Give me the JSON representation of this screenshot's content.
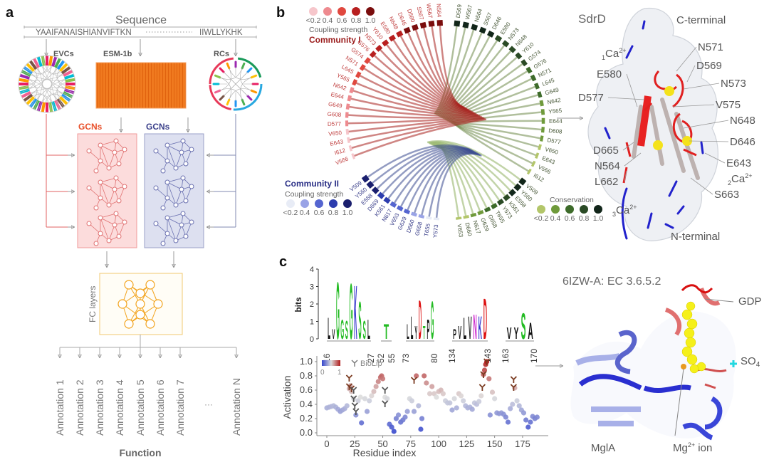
{
  "panel_a": {
    "letter": "a",
    "sequence_title": "Sequence",
    "sequence_left": "YAAIFANAISHIANVIFTKN",
    "sequence_right": "IIWLLYKHK",
    "evcs": "EVCs",
    "esm": "ESM-1b",
    "rcs": "RCs",
    "gcn_red": "GCNs",
    "gcn_blue": "GCNs",
    "fc_layers": "FC layers",
    "annotations": [
      "Annotation 1",
      "Annotation 2",
      "Annotation 3",
      "Annotation 4",
      "Annotation 5",
      "Annotation 6",
      "Annotation 7",
      "Annotation N"
    ],
    "ellipsis": "···",
    "function": "Function"
  },
  "panel_b": {
    "letter": "b",
    "legend_red": {
      "values": [
        "<0.2",
        "0.4",
        "0.6",
        "0.8",
        "1.0"
      ],
      "colors": [
        "#f6c6cb",
        "#ee8a8f",
        "#e0483f",
        "#b82020",
        "#7a0d0d"
      ],
      "title": "Coupling strength",
      "community": "Community I"
    },
    "legend_blue": {
      "values": [
        "<0.2",
        "0.4",
        "0.6",
        "0.8",
        "1.0"
      ],
      "colors": [
        "#e8ecf6",
        "#99a3e6",
        "#5565d0",
        "#2c3cae",
        "#1a1f6e"
      ],
      "title": "Coupling strength",
      "community": "Community II"
    },
    "legend_green": {
      "values": [
        "<0.2",
        "0.4",
        "0.6",
        "0.8",
        "1.0"
      ],
      "colors": [
        "#b3c66a",
        "#6f9a3b",
        "#3d6b2a",
        "#2a4a25",
        "#12261a"
      ],
      "title": "Conservation"
    },
    "red_residues": [
      "N564",
      "W567",
      "S567",
      "D580",
      "D646",
      "N648",
      "E580",
      "Y610",
      "N573",
      "G576",
      "G574",
      "N571",
      "L645",
      "Y565",
      "N642",
      "E644",
      "G649",
      "G608",
      "D577",
      "V650",
      "E643",
      "I612",
      "V566"
    ],
    "green_residues": [
      "D569",
      "W567",
      "N564",
      "S567",
      "D646",
      "E580",
      "N573",
      "N648",
      "Y610",
      "G574",
      "G576",
      "N571",
      "L645",
      "G649",
      "N642",
      "Y565",
      "E644",
      "D608",
      "D577",
      "V650",
      "E643",
      "V566",
      "I612",
      "V509",
      "Y560",
      "E558",
      "K561",
      "Y573",
      "T655",
      "G658",
      "G629",
      "N617",
      "D660",
      "V653"
    ],
    "blue_residues": [
      "V509",
      "Y560",
      "E558",
      "D669",
      "K561",
      "N617",
      "V653",
      "G629",
      "D660",
      "G658",
      "T655",
      "Y573"
    ],
    "protein_title": "SdrD",
    "protein_labels": [
      "C-terminal",
      "N571",
      "D569",
      "N573",
      "V575",
      "N648",
      "D646",
      "E643",
      "S663",
      "N-terminal",
      "E580",
      "D577",
      "D665",
      "N564",
      "L662"
    ],
    "ca_labels": [
      {
        "sub": "1",
        "text": "Ca",
        "sup": "2+"
      },
      {
        "sub": "2",
        "text": "Ca",
        "sup": "2+"
      },
      {
        "sub": "3",
        "text": "Ca",
        "sup": "2+"
      }
    ]
  },
  "panel_c": {
    "letter": "c",
    "protein_title": "6IZW-A: EC 3.6.5.2",
    "protein_labels": {
      "gdp": "GDP",
      "so4": "SO",
      "so4_sub": "4",
      "mgla": "MglA",
      "mg": "Mg",
      "mg_sup": "2+",
      "mg_ion": " ion"
    },
    "colorbar": {
      "min": "0",
      "max": "1",
      "biolip": "BioLip",
      "colors": [
        "#3344cc",
        "#dddddd",
        "#b01818"
      ]
    }
  },
  "chart_data": [
    {
      "type": "sequence-logo",
      "ylabel": "bits",
      "ylim": [
        0,
        4
      ],
      "yticks": [
        "0",
        "1",
        "2",
        "3",
        "4"
      ],
      "segments": [
        {
          "ticks": [
            "16",
            "27"
          ],
          "letters": [
            [
              "L",
              1.3,
              "#111"
            ],
            [
              "V",
              0.6,
              "#111"
            ],
            [
              "G",
              3.5,
              "#22bb22"
            ],
            [
              "G",
              1.2,
              "#22bb22"
            ],
            [
              "S",
              1.1,
              "#22bb22"
            ],
            [
              "G",
              3.4,
              "#22bb22"
            ],
            [
              "K",
              3.3,
              "#3333cc"
            ],
            [
              "S",
              2.3,
              "#22bb22"
            ],
            [
              "S",
              1.1,
              "#22bb22"
            ],
            [
              "L",
              1.2,
              "#111"
            ]
          ]
        },
        {
          "ticks": [
            "52",
            "55"
          ],
          "letters": [
            [
              "T",
              0.9,
              "#22bb22"
            ]
          ]
        },
        {
          "ticks": [
            "73",
            "80"
          ],
          "letters": [
            [
              "L",
              0.9,
              "#111"
            ],
            [
              "L",
              1.4,
              "#111"
            ],
            [
              "Y",
              0.8,
              "#111"
            ],
            [
              "D",
              2.4,
              "#dd1111"
            ],
            [
              "T",
              0.8,
              "#22bb22"
            ],
            [
              "P",
              1.2,
              "#111"
            ],
            [
              "G",
              2.3,
              "#22bb22"
            ]
          ]
        },
        {
          "ticks": [
            "134",
            "143"
          ],
          "letters": [
            [
              "P",
              0.6,
              "#111"
            ],
            [
              "V",
              0.8,
              "#111"
            ],
            [
              "L",
              1.3,
              "#111"
            ],
            [
              "V",
              1.4,
              "#111"
            ],
            [
              "N",
              1.5,
              "#cc22cc"
            ],
            [
              "K",
              1.4,
              "#3333cc"
            ],
            [
              "D",
              2.5,
              "#dd1111"
            ]
          ]
        },
        {
          "ticks": [
            "163",
            "170"
          ],
          "letters": [
            [
              "V",
              0.7,
              "#111"
            ],
            [
              "Y",
              0.7,
              "#111"
            ],
            [
              "S",
              1.6,
              "#22bb22"
            ],
            [
              "A",
              1.0,
              "#111"
            ]
          ]
        }
      ]
    },
    {
      "type": "scatter",
      "xlabel": "Residue index",
      "ylabel": "Activation",
      "xlim": [
        -5,
        195
      ],
      "ylim": [
        0,
        1.05
      ],
      "xticks": [
        "0",
        "25",
        "50",
        "75",
        "100",
        "125",
        "150",
        "175"
      ],
      "yticks": [
        "0.0",
        "0.2",
        "0.4",
        "0.6",
        "0.8",
        "1.0"
      ],
      "points": [
        [
          0,
          0.35
        ],
        [
          2,
          0.36
        ],
        [
          4,
          0.37
        ],
        [
          6,
          0.38
        ],
        [
          8,
          0.36
        ],
        [
          10,
          0.33
        ],
        [
          12,
          0.3
        ],
        [
          14,
          0.32
        ],
        [
          16,
          0.34
        ],
        [
          18,
          0.38
        ],
        [
          20,
          0.62
        ],
        [
          21,
          0.66
        ],
        [
          22,
          0.58
        ],
        [
          24,
          0.48
        ],
        [
          26,
          0.25
        ],
        [
          28,
          0.45
        ],
        [
          30,
          0.5
        ],
        [
          31,
          0.14
        ],
        [
          34,
          0.48
        ],
        [
          36,
          0.3
        ],
        [
          38,
          0.45
        ],
        [
          40,
          0.52
        ],
        [
          42,
          0.58
        ],
        [
          44,
          0.65
        ],
        [
          46,
          0.72
        ],
        [
          48,
          0.78
        ],
        [
          49,
          0.8
        ],
        [
          50,
          0.76
        ],
        [
          52,
          0.5
        ],
        [
          54,
          0.48
        ],
        [
          56,
          0.12
        ],
        [
          58,
          0.08
        ],
        [
          60,
          0.02
        ],
        [
          62,
          0.2
        ],
        [
          64,
          0.25
        ],
        [
          66,
          0.15
        ],
        [
          68,
          0.18
        ],
        [
          70,
          0.22
        ],
        [
          72,
          0.3
        ],
        [
          74,
          0.48
        ],
        [
          76,
          0.45
        ],
        [
          78,
          0.3
        ],
        [
          80,
          0.8
        ],
        [
          82,
          0.38
        ],
        [
          84,
          0.05
        ],
        [
          85,
          0.2
        ],
        [
          87,
          0.8
        ],
        [
          89,
          0.7
        ],
        [
          92,
          0.55
        ],
        [
          94,
          0.65
        ],
        [
          96,
          0.55
        ],
        [
          98,
          0.5
        ],
        [
          100,
          0.58
        ],
        [
          102,
          0.6
        ],
        [
          104,
          0.55
        ],
        [
          106,
          0.45
        ],
        [
          108,
          0.42
        ],
        [
          110,
          0.42
        ],
        [
          112,
          0.32
        ],
        [
          114,
          0.48
        ],
        [
          116,
          0.35
        ],
        [
          118,
          0.55
        ],
        [
          120,
          0.52
        ],
        [
          122,
          0.45
        ],
        [
          124,
          0.38
        ],
        [
          126,
          0.35
        ],
        [
          128,
          0.36
        ],
        [
          130,
          0.33
        ],
        [
          132,
          0.42
        ],
        [
          134,
          0.4
        ],
        [
          136,
          0.44
        ],
        [
          138,
          0.52
        ],
        [
          140,
          0.82
        ],
        [
          141,
          0.88
        ],
        [
          142,
          0.96
        ],
        [
          143,
          1.0
        ],
        [
          145,
          0.76
        ],
        [
          146,
          0.25
        ],
        [
          148,
          0.57
        ],
        [
          150,
          0.48
        ],
        [
          152,
          0.28
        ],
        [
          154,
          0.27
        ],
        [
          156,
          0.28
        ],
        [
          158,
          0.26
        ],
        [
          160,
          0.22
        ],
        [
          162,
          0.15
        ],
        [
          164,
          0.34
        ],
        [
          166,
          0.4
        ],
        [
          168,
          0.63
        ],
        [
          170,
          0.45
        ],
        [
          172,
          0.38
        ],
        [
          174,
          0.32
        ],
        [
          176,
          0.28
        ],
        [
          178,
          0.18
        ],
        [
          180,
          0.08
        ],
        [
          182,
          0.15
        ],
        [
          184,
          0.23
        ],
        [
          186,
          0.2
        ],
        [
          188,
          0.22
        ]
      ],
      "biolip": [
        [
          20,
          0.77
        ],
        [
          20,
          0.65
        ],
        [
          22,
          0.62
        ],
        [
          24,
          0.6
        ],
        [
          24,
          0.48
        ],
        [
          25,
          0.38
        ],
        [
          26,
          0.3
        ],
        [
          52,
          0.6
        ],
        [
          52,
          0.41
        ],
        [
          78,
          0.74
        ],
        [
          139,
          0.64
        ],
        [
          140,
          0.82
        ],
        [
          143,
          1.0
        ],
        [
          167,
          0.75
        ],
        [
          167,
          0.64
        ]
      ]
    }
  ]
}
